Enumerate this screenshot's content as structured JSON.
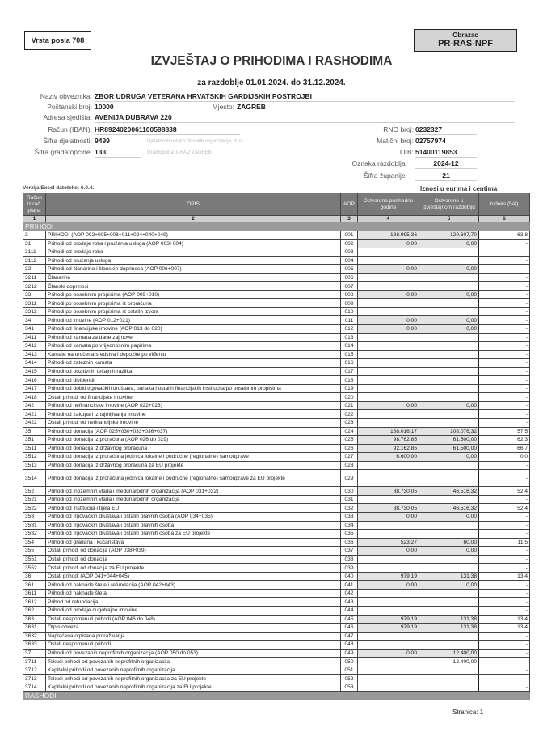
{
  "header": {
    "vrsta_posla": "Vrsta posla 708",
    "obrazac_label": "Obrazac",
    "obrazac_code": "PR-RAS-NPF",
    "title": "IZVJEŠTAJ O PRIHODIMA I RASHODIMA",
    "subtitle": "za razdoblje 01.01.2024. do 31.12.2024."
  },
  "fields": {
    "naziv_label": "Naziv obveznika:",
    "naziv": "ZBOR UDRUGA VETERANA HRVATSKIH GARDIJSKIH POSTROJBI",
    "postanski_label": "Poštanski broj:",
    "postanski": "10000",
    "mjesto_label": "Mjesto:",
    "mjesto": "ZAGREB",
    "adresa_label": "Adresa sjedišta:",
    "adresa": "AVENIJA DUBRAVA 220",
    "racun_label": "Račun (IBAN):",
    "racun": "HR8924020061100598838",
    "rno_label": "RNO broj:",
    "rno": "0232327",
    "djelatnost_label": "Šifra djelatnosti:",
    "djelatnost": "9499",
    "djelatnost_opis": "Djelatnosti ostalih članskih organizacija, d. n.",
    "maticni_label": "Matični broj:",
    "maticni": "02757974",
    "grad_label": "Šifra grada/općine:",
    "grad": "133",
    "grad_opis": "Grad/općina: GRAD ZAGREB",
    "oib_label": "OIB:",
    "oib": "51400119853",
    "razdoblje_label": "Oznaka razdoblja:",
    "razdoblje": "2024-12",
    "zupanija_label": "Šifra županije:",
    "zupanija": "21"
  },
  "verzija": "Verzija Excel datoteke: 6.0.4.",
  "iznosi": "Iznosi u eurima i centima",
  "table": {
    "headers": [
      "Račun iz rač. plana",
      "OPIS",
      "AOP",
      "Ostvareno prethodne godine",
      "Ostvareno u izvještajnom razdoblju",
      "Indeks (5/4)"
    ],
    "col_numbers": [
      "1",
      "2",
      "3",
      "4",
      "5",
      "6"
    ],
    "section_prihodi": "PRIHODI",
    "section_rashodi": "RASHODI",
    "rows": [
      [
        "3",
        "PRIHODI (AOP 002+005+008+011+024+040+049)",
        "001",
        "188.995,36",
        "120.607,70",
        "63,8"
      ],
      [
        "31",
        "Prihodi od prodaje roba i pružanja usluga (AOP 003+004)",
        "002",
        "0,00",
        "0,00",
        "-"
      ],
      [
        "3111",
        "Prihodi od prodaje roba",
        "003",
        "",
        "",
        "-"
      ],
      [
        "3112",
        "Prihodi od pružanja usluga",
        "004",
        "",
        "",
        "-"
      ],
      [
        "32",
        "Prihodi od članarina i članskih doprinosa (AOP 006+007)",
        "005",
        "0,00",
        "0,00",
        "-"
      ],
      [
        "3211",
        "Članarine",
        "006",
        "",
        "",
        "-"
      ],
      [
        "3212",
        "Članski doprinosi",
        "007",
        "",
        "",
        "-"
      ],
      [
        "33",
        "Prihodi po posebnim propisima (AOP 009+010)",
        "008",
        "0,00",
        "0,00",
        "-"
      ],
      [
        "3311",
        "Prihodi po posebnim propisima iz proračuna",
        "009",
        "",
        "",
        "-"
      ],
      [
        "3312",
        "Prihodi po posebnim propisima iz ostalih izvora",
        "010",
        "",
        "",
        "-"
      ],
      [
        "34",
        "Prihodi od imovine (AOP 012+021)",
        "011",
        "0,00",
        "0,00",
        "-"
      ],
      [
        "341",
        "Prihodi od financijske imovine (AOP 013 do 020)",
        "012",
        "0,00",
        "0,00",
        "-"
      ],
      [
        "3411",
        "Prihodi od kamata za dane zajmove",
        "013",
        "",
        "",
        "-"
      ],
      [
        "3412",
        "Prihodi od kamata po vrijednosnim papirima",
        "014",
        "",
        "",
        "-"
      ],
      [
        "3413",
        "Kamate na oročena sredstva i depozite po viđenju",
        "015",
        "",
        "",
        "-"
      ],
      [
        "3414",
        "Prihodi od zateznih kamata",
        "016",
        "",
        "",
        "-"
      ],
      [
        "3415",
        "Prihodi od pozitivnih tečajnih razlika",
        "017",
        "",
        "",
        "-"
      ],
      [
        "3416",
        "Prihodi od dividendi",
        "018",
        "",
        "",
        "-"
      ],
      [
        "3417",
        "Prihodi od dobiti trgovačkih društava, banaka i ostalih financijskih institucija po posebnim propisima",
        "019",
        "",
        "",
        "-"
      ],
      [
        "3418",
        "Ostali prihodi od financijske imovine",
        "020",
        "",
        "",
        "-"
      ],
      [
        "342",
        "Prihodi od nefinancijske imovine (AOP 022+023)",
        "021",
        "0,00",
        "0,00",
        "-"
      ],
      [
        "3421",
        "Prihodi od zakupa i iznajmljivanja imovine",
        "022",
        "",
        "",
        "-"
      ],
      [
        "3422",
        "Ostali prihodi od nefinancijske imovine",
        "023",
        "",
        "",
        "-"
      ],
      [
        "35",
        "Prihodi od donacija (AOP 025+030+033+036+037)",
        "024",
        "188.016,17",
        "108.076,32",
        "57,5"
      ],
      [
        "351",
        "Prihodi od donacija iz proračuna (AOP 026 do 029)",
        "025",
        "98.762,85",
        "61.500,00",
        "62,3"
      ],
      [
        "3511",
        "Prihodi od donacija iz državnog proračuna",
        "026",
        "92.162,85",
        "61.500,00",
        "66,7"
      ],
      [
        "3512",
        "Prihodi od donacija iz proračuna jedinica lokalne i područne (regionalne) samouprave",
        "027",
        "6.600,00",
        "0,00",
        "0,0"
      ],
      [
        "3513",
        "Prihodi od donacija iz državnog proračuna za EU projekte",
        "028",
        "",
        "",
        "-"
      ],
      [
        "3514",
        "Prihodi od donacija iz proračuna jedinica lokalne i područne (regionalne) samouprave za EU projekte",
        "029",
        "",
        "",
        "-"
      ],
      [
        "352",
        "Prihodi od inozemnih vlada i međunarodnih organizacija (AOP 031+032)",
        "030",
        "88.730,05",
        "46.516,32",
        "52,4"
      ],
      [
        "3521",
        "Prihodi od inozemnih vlada i međunarodnih organizacija",
        "031",
        "",
        "",
        "-"
      ],
      [
        "3522",
        "Prihodi od institucija i tijela EU",
        "032",
        "88.730,05",
        "46.516,32",
        "52,4"
      ],
      [
        "353",
        "Prihodi od trgovačkih društava i ostalih pravnih osoba (AOP 034+035)",
        "033",
        "0,00",
        "0,00",
        "-"
      ],
      [
        "3531",
        "Prihodi od trgovačkih društava i ostalih pravnih osoba",
        "034",
        "",
        "",
        "-"
      ],
      [
        "3532",
        "Prihodi od trgovačkih društava i ostalih pravnih osoba za EU projekte",
        "035",
        "",
        "",
        "-"
      ],
      [
        "354",
        "Prihodi od građana i kućanstava",
        "036",
        "523,27",
        "60,00",
        "11,5"
      ],
      [
        "355",
        "Ostali prihodi od donacija (AOP 038+039)",
        "037",
        "0,00",
        "0,00",
        "-"
      ],
      [
        "3551",
        "Ostali prihodi od donacija",
        "038",
        "",
        "",
        "-"
      ],
      [
        "3552",
        "Ostali prihodi od donacija za EU projekte",
        "039",
        "",
        "",
        "-"
      ],
      [
        "36",
        "Ostali prihodi (AOP 041+044+045)",
        "040",
        "979,19",
        "131,38",
        "13,4"
      ],
      [
        "361",
        "Prihodi od naknade štete i refundacija (AOP 042+043)",
        "041",
        "0,00",
        "0,00",
        "-"
      ],
      [
        "3611",
        "Prihodi od naknade šteta",
        "042",
        "",
        "",
        "-"
      ],
      [
        "3612",
        "Prihod od refundacija",
        "043",
        "",
        "",
        "-"
      ],
      [
        "362",
        "Prihodi od prodaje dugotrajne imovine",
        "044",
        "",
        "",
        "-"
      ],
      [
        "363",
        "Ostali nespomenuti prihodi (AOP 046 do 048)",
        "045",
        "979,19",
        "131,38",
        "13,4"
      ],
      [
        "3631",
        "Otpis obveza",
        "046",
        "979,19",
        "131,38",
        "13,4"
      ],
      [
        "3632",
        "Naplaćena otpisana potraživanja",
        "047",
        "",
        "",
        "-"
      ],
      [
        "3633",
        "Ostali nespomenuti prihodi",
        "048",
        "",
        "",
        "-"
      ],
      [
        "37",
        "Prihodi od povezanih neprofitnih organizacija (AOP 050 do 053)",
        "049",
        "0,00",
        "12.400,00",
        "-"
      ],
      [
        "3711",
        "Tekući prihodi od povezanih neprofitnih organizacija",
        "050",
        "",
        "12.400,00",
        "-"
      ],
      [
        "3712",
        "Kapitalni prihodi od povezanih neprofitnih organizacija",
        "051",
        "",
        "",
        "-"
      ],
      [
        "3713",
        "Tekući prihodi od povezanih neprofitnih organizacija za EU projekte",
        "052",
        "",
        "",
        "-"
      ],
      [
        "3714",
        "Kapitalni prihodi od povezanih neprofitnih organizacija za EU projekte",
        "053",
        "",
        "",
        "-"
      ]
    ]
  },
  "footer": {
    "stranica": "Stranica: 1"
  }
}
